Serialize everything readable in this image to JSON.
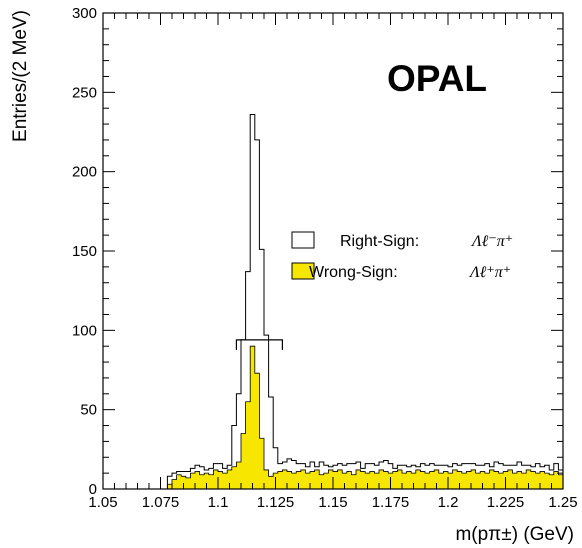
{
  "chart_data": {
    "type": "histogram",
    "title": "",
    "logo_text": "OPAL",
    "xlabel": "m(pπ±) (GeV)",
    "ylabel": "Entries/(2 MeV)",
    "xlim": [
      1.05,
      1.25
    ],
    "ylim": [
      0,
      300
    ],
    "x_ticks": [
      "1.05",
      "1.075",
      "1.1",
      "1.125",
      "1.15",
      "1.175",
      "1.2",
      "1.225",
      "1.25"
    ],
    "y_ticks": [
      "0",
      "50",
      "100",
      "150",
      "200",
      "250",
      "300"
    ],
    "bin_width": 0.002,
    "bin_start": 1.05,
    "legend_position": "center-right",
    "series": [
      {
        "name": "Right-Sign:",
        "formula": "Λℓ⁻π⁺",
        "style": "outline",
        "color": "#000000",
        "values": [
          0,
          0,
          0,
          0,
          0,
          0,
          0,
          0,
          0,
          0,
          0,
          0,
          0,
          0,
          8,
          10,
          11,
          11,
          11,
          13,
          15,
          14,
          12,
          13,
          16,
          16,
          13,
          15,
          40,
          60,
          94,
          137,
          236,
          220,
          151,
          97,
          58,
          26,
          16,
          17,
          19,
          18,
          16,
          16,
          14,
          17,
          14,
          17,
          15,
          14,
          15,
          16,
          15,
          16,
          16,
          17,
          13,
          16,
          16,
          15,
          17,
          18,
          16,
          13,
          15,
          15,
          14,
          15,
          14,
          16,
          15,
          16,
          15,
          15,
          15,
          14,
          16,
          15,
          16,
          16,
          16,
          15,
          15,
          16,
          14,
          17,
          16,
          15,
          15,
          15,
          17,
          15,
          15,
          14,
          16,
          14,
          15,
          12,
          16,
          12
        ]
      },
      {
        "name": "Wrong-Sign:",
        "formula": "Λℓ⁺π⁺",
        "style": "filled",
        "color": "#f7e600",
        "values": [
          0,
          0,
          0,
          0,
          0,
          0,
          0,
          0,
          0,
          0,
          0,
          0,
          0,
          0,
          3,
          6,
          9,
          8,
          7,
          10,
          11,
          9,
          10,
          9,
          12,
          11,
          10,
          12,
          14,
          17,
          35,
          55,
          90,
          73,
          32,
          12,
          8,
          10,
          11,
          12,
          11,
          10,
          11,
          12,
          10,
          11,
          12,
          9,
          10,
          12,
          11,
          12,
          10,
          11,
          9,
          12,
          11,
          10,
          11,
          10,
          12,
          11,
          10,
          11,
          12,
          10,
          11,
          10,
          12,
          11,
          10,
          11,
          12,
          10,
          11,
          10,
          12,
          11,
          10,
          11,
          12,
          10,
          11,
          10,
          12,
          11,
          10,
          11,
          12,
          10,
          11,
          10,
          12,
          11,
          10,
          11,
          10,
          9,
          11,
          9
        ]
      }
    ],
    "annotation": {
      "signal_window": [
        1.108,
        1.128
      ],
      "level": 94
    }
  }
}
